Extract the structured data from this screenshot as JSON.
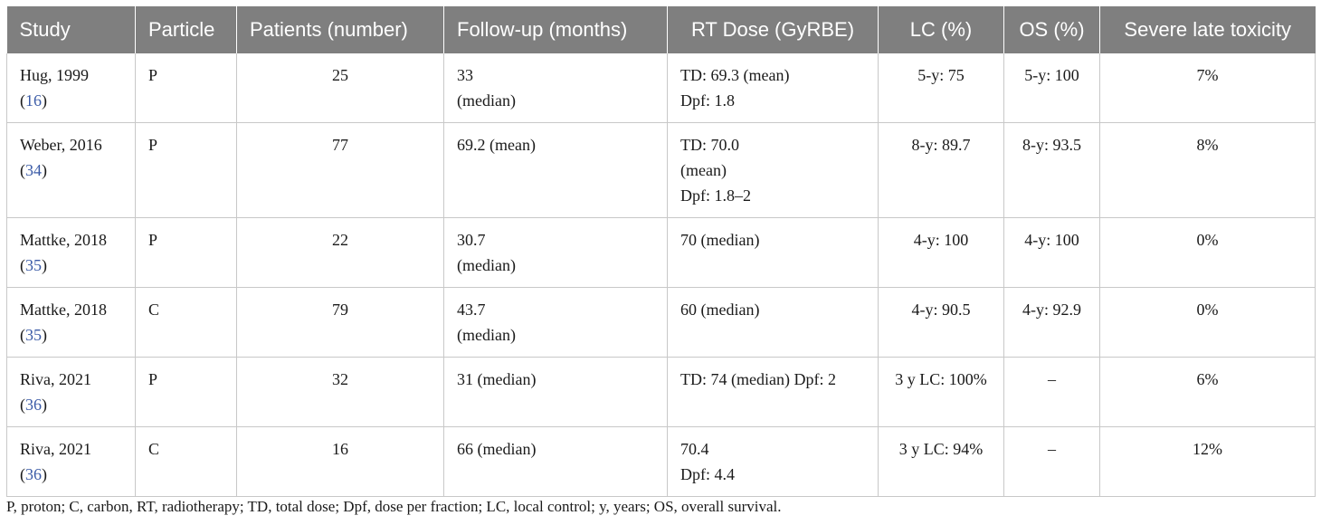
{
  "table": {
    "headers": [
      "Study",
      "Particle",
      "Patients (number)",
      "Follow-up (months)",
      "RT Dose (GyRBE)",
      "LC (%)",
      "OS (%)",
      "Severe late toxicity"
    ],
    "rows": [
      {
        "study": "Hug, 1999",
        "ref": "16",
        "particle": "P",
        "patients": "25",
        "followup": [
          "33",
          "(median)"
        ],
        "dose": [
          "TD: 69.3 (mean)",
          "Dpf: 1.8"
        ],
        "lc": "5-y: 75",
        "os": "5-y: 100",
        "tox": "7%"
      },
      {
        "study": "Weber, 2016",
        "ref": "34",
        "particle": "P",
        "patients": "77",
        "followup": [
          "69.2 (mean)"
        ],
        "dose": [
          "TD: 70.0",
          "(mean)",
          "Dpf: 1.8–2"
        ],
        "lc": "8-y: 89.7",
        "os": "8-y: 93.5",
        "tox": "8%"
      },
      {
        "study": "Mattke, 2018",
        "ref": "35",
        "particle": "P",
        "patients": "22",
        "followup": [
          "30.7",
          "(median)"
        ],
        "dose": [
          "70 (median)"
        ],
        "lc": "4-y: 100",
        "os": "4-y: 100",
        "tox": "0%"
      },
      {
        "study": "Mattke, 2018",
        "ref": "35",
        "particle": "C",
        "patients": "79",
        "followup": [
          "43.7",
          "(median)"
        ],
        "dose": [
          "60 (median)"
        ],
        "lc": "4-y: 90.5",
        "os": "4-y: 92.9",
        "tox": "0%"
      },
      {
        "study": "Riva, 2021",
        "ref": "36",
        "particle": "P",
        "patients": "32",
        "followup": [
          "31 (median)"
        ],
        "dose": [
          "TD: 74 (median) Dpf: 2"
        ],
        "lc": "3 y LC: 100%",
        "os": "–",
        "tox": "6%"
      },
      {
        "study": "Riva, 2021",
        "ref": "36",
        "particle": "C",
        "patients": "16",
        "followup": [
          "66 (median)"
        ],
        "dose": [
          "70.4",
          "Dpf: 4.4"
        ],
        "lc": "3 y LC: 94%",
        "os": "–",
        "tox": "12%"
      }
    ]
  },
  "footnote": "P, proton; C, carbon, RT, radiotherapy; TD, total dose; Dpf, dose per fraction; LC, local control; y, years; OS, overall survival.",
  "colors": {
    "header_bg": "#7f7f7f",
    "header_text": "#ffffff",
    "ref_link": "#3b5ba7",
    "grid": "#c8c8c8"
  }
}
